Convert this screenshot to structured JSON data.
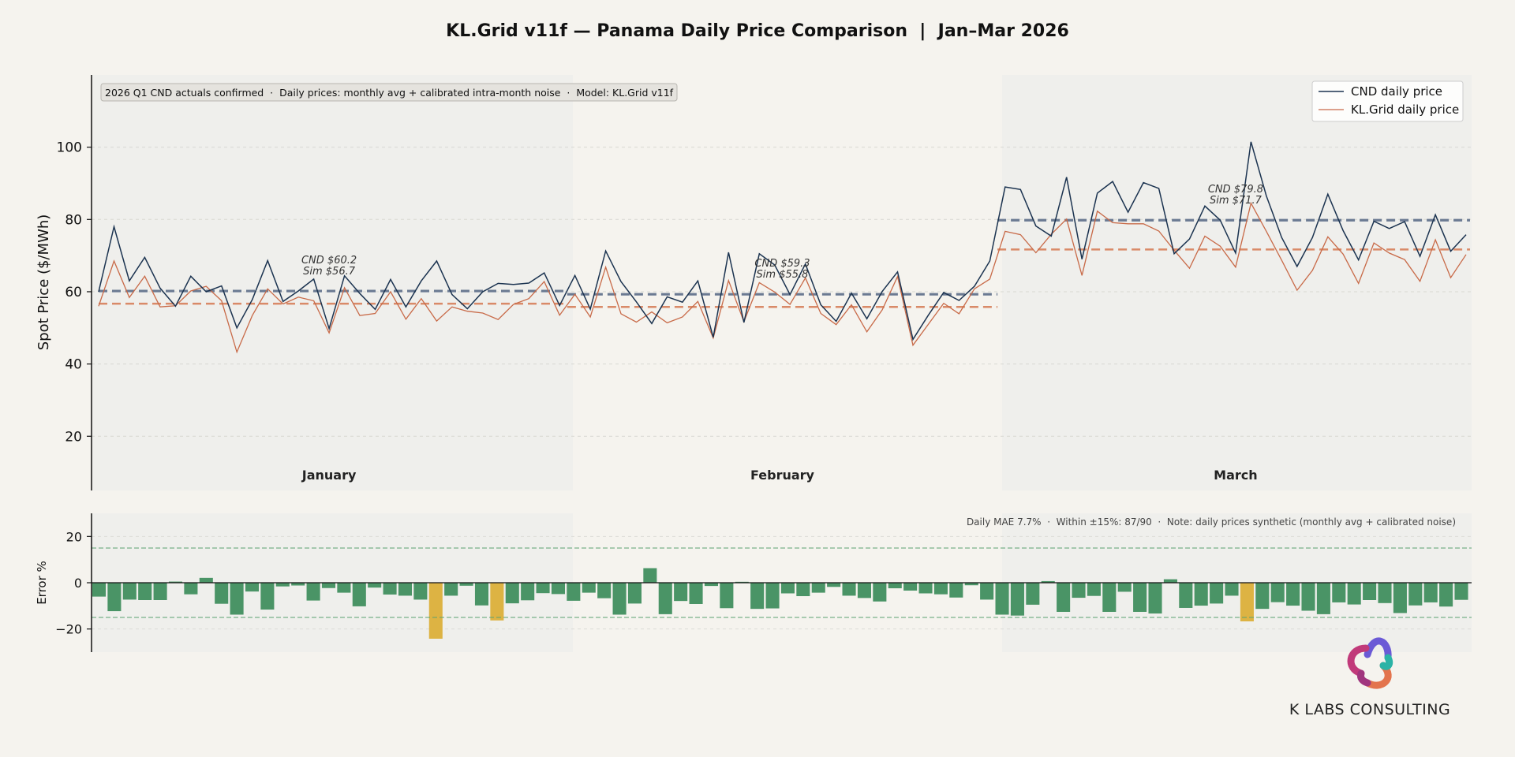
{
  "title": "KL.Grid v11f — Panama Daily Price Comparison  |  Jan–Mar 2026",
  "note": "2026 Q1 CND actuals confirmed  ·  Daily prices: monthly avg + calibrated intra-month noise  ·  Model: KL.Grid v11f",
  "stats_text": "Daily MAE 7.7%  ·  Within ±15%: 87/90  ·  Note: daily prices synthetic (monthly avg + calibrated noise)",
  "brand": "K LABS CONSULTING",
  "colors": {
    "background": "#f5f3ee",
    "cnd": "#1b3350",
    "sim": "#c86a48",
    "cnd_avg": "#6b7a92",
    "sim_avg": "#d98a68",
    "bar_ok": "#4a9466",
    "bar_bad": "#ddb343",
    "band": "#5aa070"
  },
  "chart_data": [
    {
      "type": "line",
      "ylabel": "Spot Price ($/MWh)",
      "ylim": [
        5,
        120
      ],
      "yticks": [
        20,
        40,
        60,
        80,
        100
      ],
      "grid": true,
      "legend_position": "top-right",
      "months": [
        {
          "label": "January",
          "start_day": 1,
          "end_day": 31,
          "cnd_avg": 60.2,
          "sim_avg": 56.7,
          "annotation_cnd": "CND $60.2",
          "annotation_sim": "Sim $56.7"
        },
        {
          "label": "February",
          "start_day": 32,
          "end_day": 59,
          "cnd_avg": 59.3,
          "sim_avg": 55.8,
          "annotation_cnd": "CND $59.3",
          "annotation_sim": "Sim $55.8"
        },
        {
          "label": "March",
          "start_day": 60,
          "end_day": 90,
          "cnd_avg": 79.8,
          "sim_avg": 71.7,
          "annotation_cnd": "CND $79.8",
          "annotation_sim": "Sim $71.7"
        }
      ],
      "series": [
        {
          "name": "CND daily price",
          "values": [
            60.0,
            78.0,
            63.0,
            69.5,
            61.0,
            56.0,
            64.3,
            60.0,
            61.6,
            50.0,
            57.8,
            68.6,
            57.3,
            60.2,
            63.5,
            49.8,
            64.4,
            59.5,
            55.1,
            63.4,
            55.8,
            63.0,
            68.5,
            59.2,
            55.3,
            60.0,
            62.3,
            62.0,
            62.4,
            65.2,
            56.2,
            64.5,
            55.2,
            71.3,
            62.8,
            57.2,
            51.2,
            58.6,
            57.1,
            63.0,
            47.4,
            70.9,
            51.5,
            70.5,
            67.4,
            59.2,
            67.7,
            56.4,
            51.8,
            59.6,
            52.5,
            60.1,
            65.5,
            46.8,
            53.5,
            59.8,
            57.6,
            61.5,
            68.5,
            89.0,
            88.3,
            78.2,
            75.4,
            91.7,
            69.0,
            87.3,
            90.5,
            82.0,
            90.2,
            88.6,
            70.5,
            74.6,
            83.7,
            79.8,
            70.7,
            101.5,
            86.5,
            75.0,
            67.0,
            75.0,
            87.0,
            76.9,
            68.8,
            79.5,
            77.5,
            79.4,
            69.8,
            81.3,
            71.2,
            75.8
          ]
        },
        {
          "name": "KL.Grid daily price",
          "values": [
            56.0,
            68.5,
            58.4,
            64.3,
            55.8,
            56.1,
            60.2,
            61.5,
            57.5,
            43.3,
            53.4,
            60.8,
            56.6,
            58.5,
            57.5,
            48.6,
            61.1,
            53.4,
            54.0,
            60.0,
            52.4,
            58.1,
            51.9,
            55.8,
            54.6,
            54.1,
            52.3,
            56.5,
            58.1,
            62.8,
            53.5,
            59.3,
            53.0,
            66.8,
            53.9,
            51.6,
            54.4,
            51.4,
            53.0,
            57.3,
            47.2,
            63.1,
            51.7,
            62.5,
            59.9,
            56.5,
            63.8,
            54.0,
            50.9,
            56.4,
            48.9,
            55.0,
            64.2,
            45.2,
            51.0,
            56.8,
            53.9,
            60.8,
            63.5,
            76.7,
            75.8,
            70.8,
            75.9,
            80.1,
            64.5,
            82.3,
            79.1,
            78.8,
            78.8,
            76.8,
            71.5,
            66.5,
            75.4,
            72.6,
            66.8,
            84.5,
            76.7,
            68.7,
            60.4,
            65.9,
            75.2,
            70.4,
            62.3,
            73.5,
            70.7,
            68.9,
            62.9,
            74.4,
            63.9,
            70.3
          ]
        }
      ]
    },
    {
      "type": "bar",
      "ylabel": "Error %",
      "ylim": [
        -30,
        30
      ],
      "yticks": [
        -20,
        0,
        20
      ],
      "tolerance_band": [
        -15,
        15
      ],
      "series": [
        {
          "name": "Error %",
          "values": [
            -6.0,
            -12.3,
            -7.3,
            -7.5,
            -7.5,
            0.5,
            -5.0,
            2.1,
            -9.1,
            -13.8,
            -3.8,
            -11.6,
            -1.6,
            -1.2,
            -7.7,
            -2.3,
            -4.3,
            -10.2,
            -2.1,
            -5.1,
            -5.6,
            -7.3,
            -24.2,
            -5.6,
            -1.3,
            -9.8,
            -16.3,
            -8.9,
            -7.6,
            -4.5,
            -4.9,
            -7.8,
            -4.3,
            -6.7,
            -13.8,
            -9.0,
            6.3,
            -13.6,
            -7.9,
            -9.2,
            -1.4,
            -11.0,
            0.4,
            -11.3,
            -11.1,
            -4.6,
            -5.8,
            -4.3,
            -1.8,
            -5.6,
            -6.6,
            -8.1,
            -2.4,
            -3.4,
            -4.6,
            -5.0,
            -6.4,
            -1.1,
            -7.3,
            -13.8,
            -14.2,
            -9.5,
            0.7,
            -12.6,
            -6.5,
            -5.7,
            -12.6,
            -3.9,
            -12.6,
            -13.3,
            1.5,
            -10.9,
            -9.9,
            -9.0,
            -5.6,
            -16.7,
            -11.3,
            -8.4,
            -9.9,
            -12.1,
            -13.6,
            -8.5,
            -9.4,
            -7.5,
            -8.8,
            -13.1,
            -9.8,
            -8.5,
            -10.3,
            -7.4
          ]
        }
      ]
    }
  ]
}
